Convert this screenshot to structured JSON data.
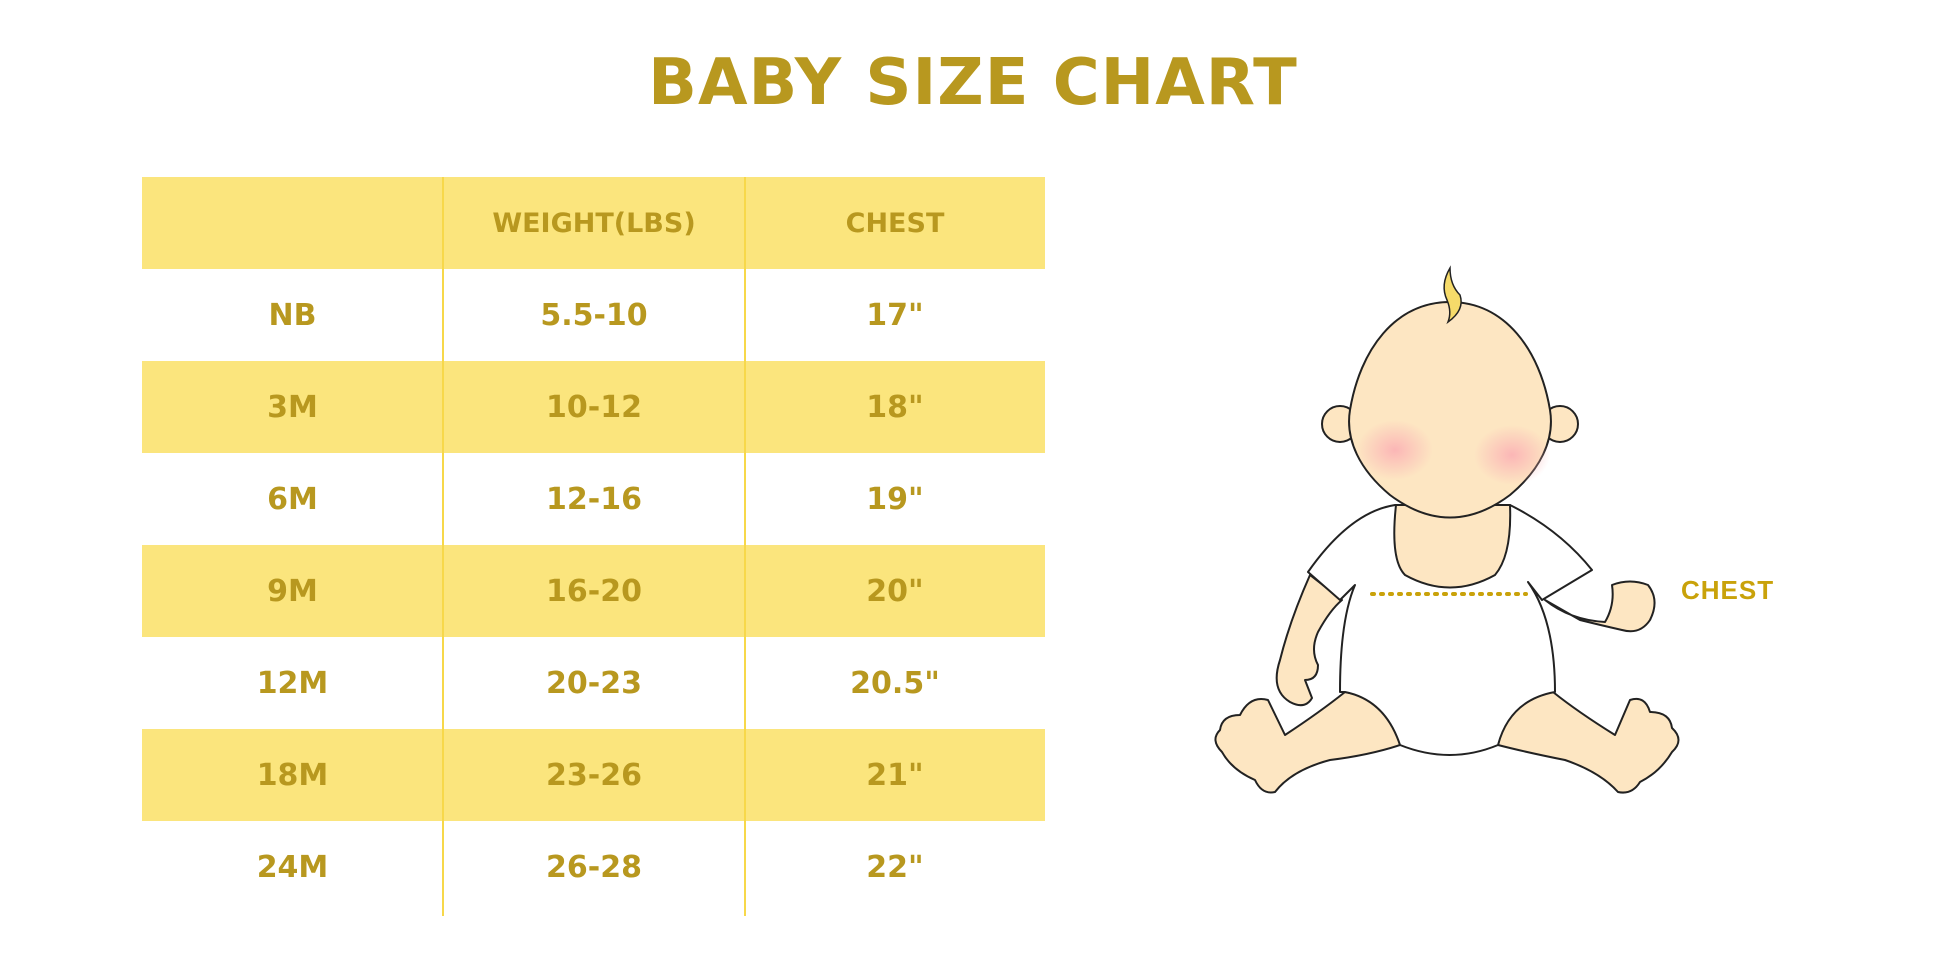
{
  "title": "BABY SIZE CHART",
  "table": {
    "headers": [
      "",
      "WEIGHT(LBS)",
      "CHEST"
    ],
    "rows": [
      [
        "NB",
        "5.5-10",
        "17\""
      ],
      [
        "3M",
        "10-12",
        "18\""
      ],
      [
        "6M",
        "12-16",
        "19\""
      ],
      [
        "9M",
        "16-20",
        "20\""
      ],
      [
        "12M",
        "20-23",
        "20.5\""
      ],
      [
        "18M",
        "23-26",
        "21\""
      ],
      [
        "24M",
        "26-28",
        "22\""
      ]
    ]
  },
  "illustration": {
    "label": "CHEST",
    "icon": "baby-illustration"
  },
  "colors": {
    "text": "#b8981f",
    "band": "#fbe57d",
    "divider": "#f7d84a",
    "chest_label": "#c9a20a"
  }
}
